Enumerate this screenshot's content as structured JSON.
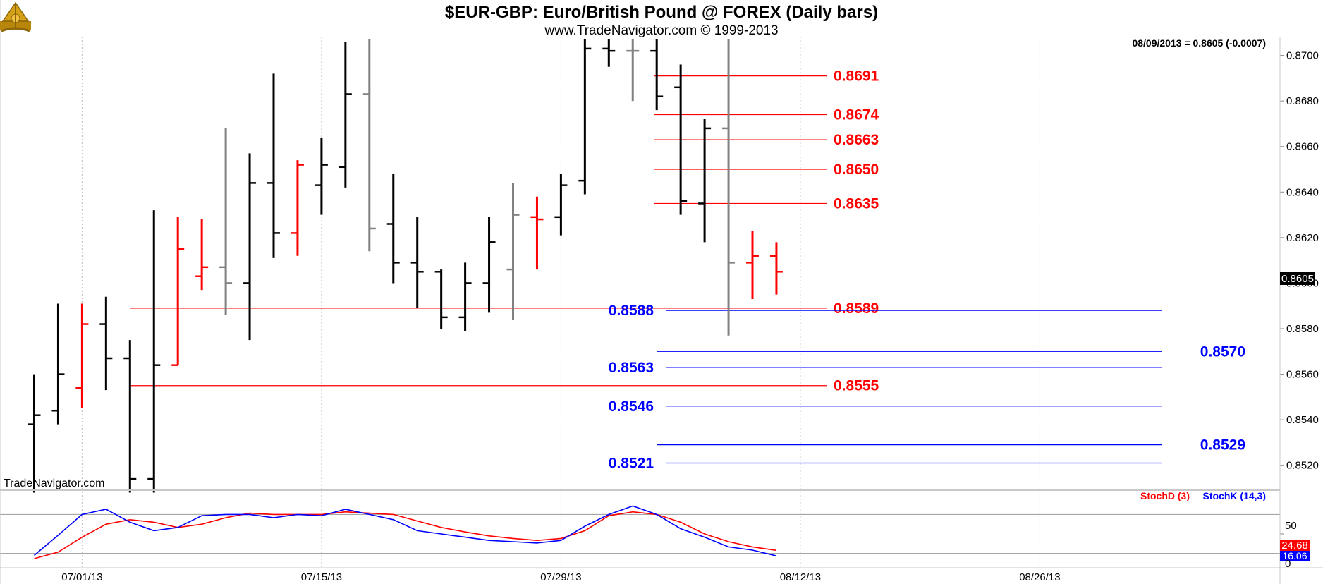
{
  "header": {
    "title": "$EUR-GBP:  Euro/British Pound @ FOREX  (Daily bars)",
    "subtitle": "www.TradeNavigator.com © 1999-2013"
  },
  "logo": {
    "icon": "sextant-logo-icon"
  },
  "watermark": "TradeNavigator.com",
  "last_quote": "08/09/2013 = 0.8605 (-0.0007)",
  "current_price_tag": "0.8605",
  "indicator": {
    "labels": {
      "stochd": "StochD (3)",
      "stochk": "StochK (14,3)"
    },
    "tag_d": "24.68",
    "tag_k": "16.06",
    "ticks": [
      "50",
      "0"
    ]
  },
  "colors": {
    "up_bar": "#000000",
    "down_bar": "#ff0000",
    "neutral_bar": "#808080",
    "red_level": "#ff0000",
    "blue_level": "#0000ff",
    "stoch_d": "#ff0000",
    "stoch_k": "#0000ff"
  },
  "chart_data": {
    "type": "ohlc",
    "title": "$EUR-GBP:  Euro/British Pound @ FOREX  (Daily bars)",
    "ylim": [
      0.851,
      0.8707
    ],
    "y_ticks": [
      "0.8700",
      "0.8680",
      "0.8660",
      "0.8640",
      "0.8620",
      "0.8600",
      "0.8580",
      "0.8560",
      "0.8540",
      "0.8520"
    ],
    "x_ticks": [
      {
        "label": "07/01/13",
        "slot": 2
      },
      {
        "label": "07/15/13",
        "slot": 12
      },
      {
        "label": "07/29/13",
        "slot": 22
      },
      {
        "label": "08/12/13",
        "slot": 32
      },
      {
        "label": "08/26/13",
        "slot": 42
      }
    ],
    "bars": [
      {
        "slot": 0,
        "open": 0.8538,
        "high": 0.856,
        "low": 0.8508,
        "close": 0.8542,
        "color": "black"
      },
      {
        "slot": 1,
        "open": 0.8544,
        "high": 0.8591,
        "low": 0.8538,
        "close": 0.856,
        "color": "black"
      },
      {
        "slot": 2,
        "open": 0.8554,
        "high": 0.8591,
        "low": 0.8545,
        "close": 0.8582,
        "color": "red"
      },
      {
        "slot": 3,
        "open": 0.8582,
        "high": 0.8594,
        "low": 0.8553,
        "close": 0.8567,
        "color": "black"
      },
      {
        "slot": 4,
        "open": 0.8567,
        "high": 0.8575,
        "low": 0.8508,
        "close": 0.8514,
        "color": "black"
      },
      {
        "slot": 5,
        "open": 0.8514,
        "high": 0.8632,
        "low": 0.8508,
        "close": 0.8564,
        "color": "black"
      },
      {
        "slot": 6,
        "open": 0.8564,
        "high": 0.8629,
        "low": 0.8564,
        "close": 0.8615,
        "color": "red"
      },
      {
        "slot": 7,
        "open": 0.8603,
        "high": 0.8628,
        "low": 0.8597,
        "close": 0.8607,
        "color": "red"
      },
      {
        "slot": 8,
        "open": 0.8607,
        "high": 0.8668,
        "low": 0.8586,
        "close": 0.86,
        "color": "gray"
      },
      {
        "slot": 9,
        "open": 0.86,
        "high": 0.8657,
        "low": 0.8575,
        "close": 0.8644,
        "color": "black"
      },
      {
        "slot": 10,
        "open": 0.8644,
        "high": 0.8692,
        "low": 0.8611,
        "close": 0.8622,
        "color": "black"
      },
      {
        "slot": 11,
        "open": 0.8622,
        "high": 0.8654,
        "low": 0.8612,
        "close": 0.8652,
        "color": "red"
      },
      {
        "slot": 12,
        "open": 0.8643,
        "high": 0.8664,
        "low": 0.863,
        "close": 0.8652,
        "color": "black"
      },
      {
        "slot": 13,
        "open": 0.8651,
        "high": 0.8706,
        "low": 0.8642,
        "close": 0.8683,
        "color": "black"
      },
      {
        "slot": 14,
        "open": 0.8683,
        "high": 0.8707,
        "low": 0.8614,
        "close": 0.8624,
        "color": "gray"
      },
      {
        "slot": 15,
        "open": 0.8626,
        "high": 0.8648,
        "low": 0.86,
        "close": 0.8609,
        "color": "black"
      },
      {
        "slot": 16,
        "open": 0.8609,
        "high": 0.8629,
        "low": 0.8589,
        "close": 0.8605,
        "color": "black"
      },
      {
        "slot": 17,
        "open": 0.8605,
        "high": 0.8606,
        "low": 0.858,
        "close": 0.8585,
        "color": "black"
      },
      {
        "slot": 18,
        "open": 0.8585,
        "high": 0.8609,
        "low": 0.8579,
        "close": 0.86,
        "color": "black"
      },
      {
        "slot": 19,
        "open": 0.86,
        "high": 0.8629,
        "low": 0.8587,
        "close": 0.8618,
        "color": "black"
      },
      {
        "slot": 20,
        "open": 0.8606,
        "high": 0.8644,
        "low": 0.8584,
        "close": 0.863,
        "color": "gray"
      },
      {
        "slot": 21,
        "open": 0.8629,
        "high": 0.8638,
        "low": 0.8606,
        "close": 0.8628,
        "color": "red"
      },
      {
        "slot": 22,
        "open": 0.8629,
        "high": 0.8648,
        "low": 0.8621,
        "close": 0.8643,
        "color": "black"
      },
      {
        "slot": 23,
        "open": 0.8645,
        "high": 0.8707,
        "low": 0.8639,
        "close": 0.8703,
        "color": "black"
      },
      {
        "slot": 24,
        "open": 0.8703,
        "high": 0.8707,
        "low": 0.8695,
        "close": 0.8702,
        "color": "black"
      },
      {
        "slot": 25,
        "open": 0.8702,
        "high": 0.8707,
        "low": 0.868,
        "close": 0.8702,
        "color": "gray"
      },
      {
        "slot": 26,
        "open": 0.8702,
        "high": 0.8707,
        "low": 0.8676,
        "close": 0.8682,
        "color": "black"
      },
      {
        "slot": 27,
        "open": 0.8686,
        "high": 0.8696,
        "low": 0.863,
        "close": 0.8636,
        "color": "black"
      },
      {
        "slot": 28,
        "open": 0.8635,
        "high": 0.8672,
        "low": 0.8618,
        "close": 0.8668,
        "color": "black"
      },
      {
        "slot": 29,
        "open": 0.8668,
        "high": 0.8707,
        "low": 0.8577,
        "close": 0.8609,
        "color": "gray"
      },
      {
        "slot": 30,
        "open": 0.8609,
        "high": 0.8623,
        "low": 0.8593,
        "close": 0.8612,
        "color": "red"
      },
      {
        "slot": 31,
        "open": 0.8612,
        "high": 0.8618,
        "low": 0.8595,
        "close": 0.8605,
        "color": "red"
      }
    ],
    "red_levels": [
      {
        "label": "0.8691",
        "value": 0.8691,
        "start_slot": 25.9
      },
      {
        "label": "0.8674",
        "value": 0.8674,
        "start_slot": 25.9
      },
      {
        "label": "0.8663",
        "value": 0.8663,
        "start_slot": 25.9
      },
      {
        "label": "0.8650",
        "value": 0.865,
        "start_slot": 25.9
      },
      {
        "label": "0.8635",
        "value": 0.8635,
        "start_slot": 25.9
      },
      {
        "label": "0.8589",
        "value": 0.8589,
        "start_slot": 4.0
      },
      {
        "label": "0.8555",
        "value": 0.8555,
        "start_slot": 4.0
      }
    ],
    "blue_levels": [
      {
        "label": "0.8588",
        "value": 0.8588,
        "label_side": "left"
      },
      {
        "label": "0.8570",
        "value": 0.857,
        "label_side": "right"
      },
      {
        "label": "0.8563",
        "value": 0.8563,
        "label_side": "left"
      },
      {
        "label": "0.8546",
        "value": 0.8546,
        "label_side": "left"
      },
      {
        "label": "0.8529",
        "value": 0.8529,
        "label_side": "right"
      },
      {
        "label": "0.8521",
        "value": 0.8521,
        "label_side": "left"
      }
    ],
    "stoch_ylim": [
      0,
      100
    ],
    "stoch_d": [
      12,
      22,
      45,
      65,
      72,
      68,
      60,
      65,
      75,
      82,
      80,
      80,
      80,
      84,
      82,
      80,
      70,
      60,
      53,
      47,
      43,
      40,
      43,
      55,
      78,
      84,
      80,
      68,
      50,
      38,
      30,
      24.68
    ],
    "stoch_k": [
      17,
      48,
      80,
      88,
      68,
      55,
      60,
      78,
      80,
      80,
      75,
      80,
      78,
      88,
      80,
      72,
      55,
      50,
      45,
      40,
      38,
      36,
      40,
      62,
      80,
      93,
      80,
      58,
      45,
      30,
      25,
      16.06
    ]
  }
}
